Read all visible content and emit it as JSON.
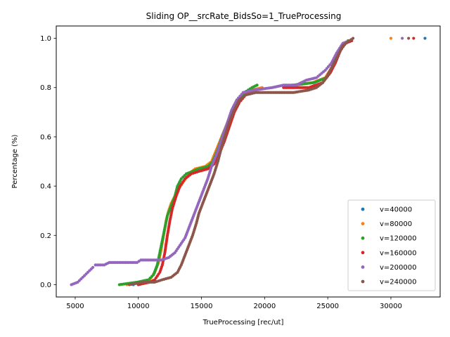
{
  "chart_data": {
    "type": "scatter",
    "title": "Sliding OP__srcRate_BidsSo=1_TrueProcessing",
    "xlabel": "TrueProcessing [rec/ut]",
    "ylabel": "Percentage (%)",
    "xlim": [
      3500,
      33900
    ],
    "ylim": [
      -0.05,
      1.05
    ],
    "xticks": [
      5000,
      10000,
      15000,
      20000,
      25000,
      30000
    ],
    "yticks": [
      0.0,
      0.2,
      0.4,
      0.6,
      0.8,
      1.0
    ],
    "xtick_labels": [
      "5000",
      "10000",
      "15000",
      "20000",
      "25000",
      "30000"
    ],
    "ytick_labels": [
      "0.0",
      "0.2",
      "0.4",
      "0.6",
      "0.8",
      "1.0"
    ],
    "grid": false,
    "legend_position": "lower-right",
    "series": [
      {
        "name": "v=40000",
        "color": "#1f77b4",
        "points": [
          [
            9600,
            0.0
          ],
          [
            32700,
            1.0
          ]
        ]
      },
      {
        "name": "v=80000",
        "color": "#ff7f0e",
        "points": [
          [
            9100,
            0.0
          ],
          [
            10100,
            0.01
          ],
          [
            10900,
            0.02
          ],
          [
            11300,
            0.05
          ],
          [
            11600,
            0.09
          ],
          [
            11800,
            0.14
          ],
          [
            12000,
            0.2
          ],
          [
            12200,
            0.26
          ],
          [
            12400,
            0.3
          ],
          [
            12600,
            0.33
          ],
          [
            12900,
            0.36
          ],
          [
            13200,
            0.39
          ],
          [
            13600,
            0.42
          ],
          [
            14000,
            0.45
          ],
          [
            14500,
            0.47
          ],
          [
            15300,
            0.48
          ],
          [
            15800,
            0.5
          ],
          [
            16200,
            0.55
          ],
          [
            16600,
            0.6
          ],
          [
            17000,
            0.65
          ],
          [
            17400,
            0.7
          ],
          [
            17800,
            0.74
          ],
          [
            18300,
            0.77
          ],
          [
            19000,
            0.79
          ],
          [
            19800,
            0.8
          ],
          [
            22300,
            0.81
          ],
          [
            23800,
            0.82
          ],
          [
            24800,
            0.84
          ],
          [
            25300,
            0.88
          ],
          [
            25700,
            0.92
          ],
          [
            26100,
            0.96
          ],
          [
            26600,
            0.99
          ],
          [
            30000,
            1.0
          ]
        ]
      },
      {
        "name": "v=120000",
        "color": "#2ca02c",
        "points": [
          [
            8500,
            0.0
          ],
          [
            9900,
            0.01
          ],
          [
            10800,
            0.02
          ],
          [
            11200,
            0.04
          ],
          [
            11500,
            0.08
          ],
          [
            11700,
            0.13
          ],
          [
            11900,
            0.18
          ],
          [
            12100,
            0.23
          ],
          [
            12300,
            0.28
          ],
          [
            12600,
            0.32
          ],
          [
            12900,
            0.36
          ],
          [
            13100,
            0.4
          ],
          [
            13400,
            0.43
          ],
          [
            13800,
            0.45
          ],
          [
            14300,
            0.46
          ],
          [
            14800,
            0.47
          ],
          [
            15500,
            0.48
          ],
          [
            15900,
            0.5
          ],
          [
            16300,
            0.55
          ],
          [
            16700,
            0.61
          ],
          [
            17100,
            0.66
          ],
          [
            17500,
            0.71
          ],
          [
            17900,
            0.75
          ],
          [
            18400,
            0.78
          ],
          [
            19000,
            0.8
          ],
          [
            19400,
            0.81
          ],
          [
            22200,
            0.81
          ],
          [
            23900,
            0.82
          ],
          [
            24900,
            0.84
          ],
          [
            25300,
            0.88
          ],
          [
            25700,
            0.92
          ],
          [
            26100,
            0.96
          ],
          [
            26600,
            0.99
          ]
        ]
      },
      {
        "name": "v=160000",
        "color": "#d62728",
        "points": [
          [
            10000,
            0.0
          ],
          [
            10900,
            0.01
          ],
          [
            11300,
            0.02
          ],
          [
            11700,
            0.05
          ],
          [
            11900,
            0.08
          ],
          [
            12100,
            0.13
          ],
          [
            12300,
            0.2
          ],
          [
            12500,
            0.26
          ],
          [
            12700,
            0.31
          ],
          [
            13000,
            0.36
          ],
          [
            13300,
            0.4
          ],
          [
            13700,
            0.43
          ],
          [
            14200,
            0.45
          ],
          [
            14800,
            0.46
          ],
          [
            15500,
            0.47
          ],
          [
            16000,
            0.49
          ],
          [
            16400,
            0.53
          ],
          [
            16800,
            0.58
          ],
          [
            17200,
            0.64
          ],
          [
            17600,
            0.7
          ],
          [
            18000,
            0.74
          ],
          [
            18500,
            0.77
          ],
          [
            19200,
            0.79
          ],
          [
            21500,
            0.8
          ],
          [
            23500,
            0.8
          ],
          [
            24600,
            0.82
          ],
          [
            25200,
            0.86
          ],
          [
            25600,
            0.9
          ],
          [
            26000,
            0.95
          ],
          [
            26400,
            0.98
          ],
          [
            26900,
            0.99
          ],
          [
            31800,
            1.0
          ]
        ]
      },
      {
        "name": "v=200000",
        "color": "#9467bd",
        "points": [
          [
            4700,
            0.0
          ],
          [
            5200,
            0.01
          ],
          [
            5600,
            0.03
          ],
          [
            6000,
            0.05
          ],
          [
            6400,
            0.07
          ],
          [
            6600,
            0.08
          ],
          [
            7300,
            0.08
          ],
          [
            7700,
            0.09
          ],
          [
            9500,
            0.09
          ],
          [
            9900,
            0.09
          ],
          [
            10200,
            0.1
          ],
          [
            11800,
            0.1
          ],
          [
            12400,
            0.11
          ],
          [
            12900,
            0.13
          ],
          [
            13300,
            0.16
          ],
          [
            13700,
            0.19
          ],
          [
            14000,
            0.23
          ],
          [
            14300,
            0.27
          ],
          [
            14600,
            0.31
          ],
          [
            14900,
            0.35
          ],
          [
            15200,
            0.39
          ],
          [
            15500,
            0.43
          ],
          [
            15800,
            0.48
          ],
          [
            16200,
            0.53
          ],
          [
            16600,
            0.59
          ],
          [
            17000,
            0.65
          ],
          [
            17400,
            0.71
          ],
          [
            17800,
            0.75
          ],
          [
            18300,
            0.78
          ],
          [
            19200,
            0.79
          ],
          [
            20600,
            0.8
          ],
          [
            21500,
            0.81
          ],
          [
            22500,
            0.81
          ],
          [
            23300,
            0.83
          ],
          [
            24100,
            0.84
          ],
          [
            24800,
            0.87
          ],
          [
            25300,
            0.9
          ],
          [
            25700,
            0.94
          ],
          [
            26200,
            0.98
          ],
          [
            26700,
            0.99
          ],
          [
            30900,
            1.0
          ]
        ]
      },
      {
        "name": "v=240000",
        "color": "#8c564b",
        "points": [
          [
            9300,
            0.0
          ],
          [
            10400,
            0.01
          ],
          [
            11300,
            0.01
          ],
          [
            11900,
            0.02
          ],
          [
            12600,
            0.03
          ],
          [
            13100,
            0.05
          ],
          [
            13400,
            0.08
          ],
          [
            13700,
            0.12
          ],
          [
            14000,
            0.16
          ],
          [
            14300,
            0.2
          ],
          [
            14600,
            0.25
          ],
          [
            14800,
            0.29
          ],
          [
            15100,
            0.33
          ],
          [
            15400,
            0.37
          ],
          [
            15700,
            0.41
          ],
          [
            16000,
            0.45
          ],
          [
            16300,
            0.5
          ],
          [
            16600,
            0.56
          ],
          [
            16900,
            0.61
          ],
          [
            17200,
            0.66
          ],
          [
            17600,
            0.71
          ],
          [
            18000,
            0.75
          ],
          [
            18500,
            0.77
          ],
          [
            19300,
            0.78
          ],
          [
            20700,
            0.78
          ],
          [
            22300,
            0.78
          ],
          [
            23500,
            0.79
          ],
          [
            24100,
            0.8
          ],
          [
            24600,
            0.82
          ],
          [
            25000,
            0.85
          ],
          [
            25400,
            0.89
          ],
          [
            25800,
            0.93
          ],
          [
            26200,
            0.97
          ],
          [
            26700,
            0.99
          ],
          [
            27000,
            1.0
          ],
          [
            31400,
            1.0
          ]
        ]
      }
    ]
  }
}
